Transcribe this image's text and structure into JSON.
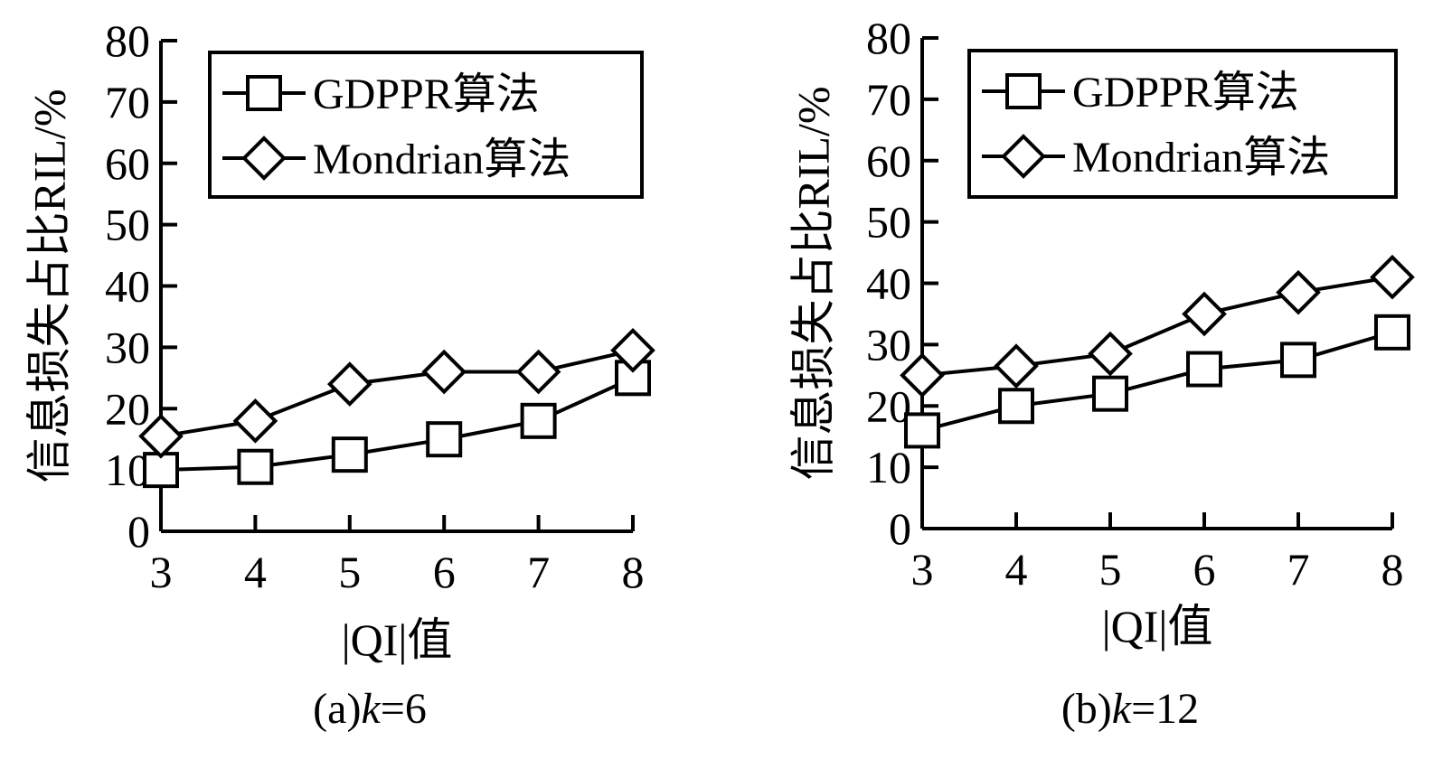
{
  "chart_data": [
    {
      "type": "line",
      "caption": "(a)k=6",
      "caption_prefix": "(a)",
      "caption_var": "k",
      "caption_value": "=6",
      "xlabel": "|QI|值",
      "ylabel": "信息损失占比RIL/%",
      "x": [
        3,
        4,
        5,
        6,
        7,
        8
      ],
      "xticks": [
        "3",
        "4",
        "5",
        "6",
        "7",
        "8"
      ],
      "ylim": [
        0,
        80
      ],
      "yticks": [
        "0",
        "10",
        "20",
        "30",
        "40",
        "50",
        "60",
        "70",
        "80"
      ],
      "grid": false,
      "legend": "top",
      "series": [
        {
          "name": "GDPPR算法",
          "marker": "square",
          "values": [
            10,
            10.5,
            12.5,
            15,
            18,
            25
          ]
        },
        {
          "name": "Mondrian算法",
          "marker": "diamond",
          "values": [
            15.5,
            18,
            24,
            26,
            26,
            29.5
          ]
        }
      ]
    },
    {
      "type": "line",
      "caption": "(b)k=12",
      "caption_prefix": "(b)",
      "caption_var": "k",
      "caption_value": "=12",
      "xlabel": "|QI|值",
      "ylabel": "信息损失占比RIL/%",
      "x": [
        3,
        4,
        5,
        6,
        7,
        8
      ],
      "xticks": [
        "3",
        "4",
        "5",
        "6",
        "7",
        "8"
      ],
      "ylim": [
        0,
        80
      ],
      "yticks": [
        "0",
        "10",
        "20",
        "30",
        "40",
        "50",
        "60",
        "70",
        "80"
      ],
      "grid": false,
      "legend": "top",
      "series": [
        {
          "name": "GDPPR算法",
          "marker": "square",
          "values": [
            16,
            20,
            22,
            26,
            27.5,
            32
          ]
        },
        {
          "name": "Mondrian算法",
          "marker": "diamond",
          "values": [
            25,
            26.5,
            28.5,
            35,
            38.5,
            41
          ]
        }
      ]
    }
  ]
}
